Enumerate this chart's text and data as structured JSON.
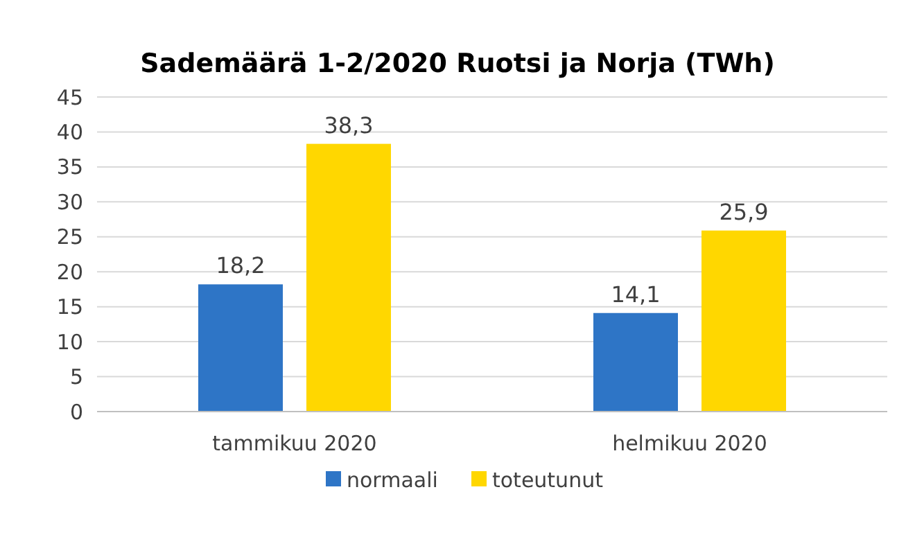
{
  "chart_data": {
    "type": "bar",
    "title": "Sademäärä 1-2/2020 Ruotsi ja Norja (TWh)",
    "categories": [
      "tammikuu 2020",
      "helmikuu 2020"
    ],
    "series": [
      {
        "name": "normaali",
        "color": "#2e75c6",
        "values": [
          18.2,
          14.1
        ],
        "value_labels": [
          "18,2",
          "14,1"
        ]
      },
      {
        "name": "toteutunut",
        "color": "#ffd700",
        "values": [
          38.3,
          25.9
        ],
        "value_labels": [
          "38,3",
          "25,9"
        ]
      }
    ],
    "ylim": [
      0,
      45
    ],
    "yticks": [
      0,
      5,
      10,
      15,
      20,
      25,
      30,
      35,
      40,
      45
    ],
    "grid": "y",
    "legend": "bottom"
  }
}
